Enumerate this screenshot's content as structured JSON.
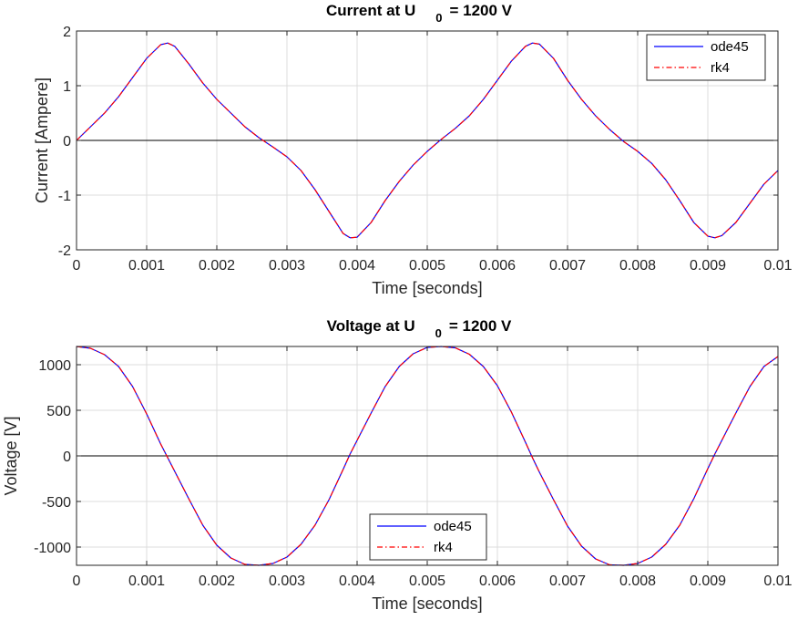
{
  "chart_data": [
    {
      "type": "line",
      "title": {
        "main": "Current at U",
        "sub": "0",
        "tail": "= 1200 V"
      },
      "xlabel": "Time [seconds]",
      "ylabel": "Current [Ampere]",
      "xlim": [
        0,
        0.01
      ],
      "ylim": [
        -2,
        2
      ],
      "xticks": [
        0,
        0.001,
        0.002,
        0.003,
        0.004,
        0.005,
        0.006,
        0.007,
        0.008,
        0.009,
        0.01
      ],
      "xtick_labels": [
        "0",
        "0.001",
        "0.002",
        "0.003",
        "0.004",
        "0.005",
        "0.006",
        "0.007",
        "0.008",
        "0.009",
        "0.01"
      ],
      "yticks": [
        -2,
        -1,
        0,
        1,
        2
      ],
      "ytick_labels": [
        "-2",
        "-1",
        "0",
        "1",
        "2"
      ],
      "grid": true,
      "zero_line": true,
      "legend": {
        "position": "top-right",
        "entries": [
          "ode45",
          "rk4"
        ]
      },
      "x": [
        0,
        0.0002,
        0.0004,
        0.0006,
        0.0008,
        0.001,
        0.0012,
        0.0013,
        0.0014,
        0.0016,
        0.0018,
        0.002,
        0.0022,
        0.0024,
        0.0026,
        0.0028,
        0.003,
        0.0032,
        0.0034,
        0.0036,
        0.0038,
        0.0039,
        0.004,
        0.0042,
        0.0044,
        0.0046,
        0.0048,
        0.005,
        0.0052,
        0.0054,
        0.0056,
        0.0058,
        0.006,
        0.0062,
        0.0064,
        0.0065,
        0.0066,
        0.0068,
        0.007,
        0.0072,
        0.0074,
        0.0076,
        0.0078,
        0.008,
        0.0082,
        0.0084,
        0.0086,
        0.0088,
        0.009,
        0.0091,
        0.0092,
        0.0094,
        0.0096,
        0.0098,
        0.01
      ],
      "series": [
        {
          "name": "ode45",
          "color": "#0000ff",
          "style": "solid",
          "values": [
            0,
            0.25,
            0.5,
            0.8,
            1.15,
            1.5,
            1.75,
            1.78,
            1.72,
            1.4,
            1.05,
            0.75,
            0.5,
            0.25,
            0.05,
            -0.12,
            -0.3,
            -0.55,
            -0.9,
            -1.3,
            -1.7,
            -1.78,
            -1.77,
            -1.5,
            -1.1,
            -0.75,
            -0.45,
            -0.2,
            0.02,
            0.22,
            0.45,
            0.75,
            1.1,
            1.45,
            1.72,
            1.78,
            1.76,
            1.5,
            1.1,
            0.75,
            0.45,
            0.2,
            -0.02,
            -0.2,
            -0.42,
            -0.72,
            -1.1,
            -1.5,
            -1.75,
            -1.78,
            -1.74,
            -1.5,
            -1.15,
            -0.8,
            -0.55
          ]
        },
        {
          "name": "rk4",
          "color": "#ff0000",
          "style": "dashdot",
          "values": [
            0,
            0.25,
            0.5,
            0.8,
            1.15,
            1.5,
            1.75,
            1.78,
            1.72,
            1.4,
            1.05,
            0.75,
            0.5,
            0.25,
            0.05,
            -0.12,
            -0.3,
            -0.55,
            -0.9,
            -1.3,
            -1.7,
            -1.78,
            -1.77,
            -1.5,
            -1.1,
            -0.75,
            -0.45,
            -0.2,
            0.02,
            0.22,
            0.45,
            0.75,
            1.1,
            1.45,
            1.72,
            1.78,
            1.76,
            1.5,
            1.1,
            0.75,
            0.45,
            0.2,
            -0.02,
            -0.2,
            -0.42,
            -0.72,
            -1.1,
            -1.5,
            -1.75,
            -1.78,
            -1.74,
            -1.5,
            -1.15,
            -0.8,
            -0.55
          ]
        }
      ]
    },
    {
      "type": "line",
      "title": {
        "main": "Voltage at U",
        "sub": "0",
        "tail": "= 1200 V"
      },
      "xlabel": "Time [seconds]",
      "ylabel": "Voltage [V]",
      "xlim": [
        0,
        0.01
      ],
      "ylim": [
        -1200,
        1200
      ],
      "xticks": [
        0,
        0.001,
        0.002,
        0.003,
        0.004,
        0.005,
        0.006,
        0.007,
        0.008,
        0.009,
        0.01
      ],
      "xtick_labels": [
        "0",
        "0.001",
        "0.002",
        "0.003",
        "0.004",
        "0.005",
        "0.006",
        "0.007",
        "0.008",
        "0.009",
        "0.01"
      ],
      "yticks": [
        -1000,
        -500,
        0,
        500,
        1000
      ],
      "ytick_labels": [
        "-1000",
        "-500",
        "0",
        "500",
        "1000"
      ],
      "grid": true,
      "zero_line": true,
      "legend": {
        "position": "bottom-center",
        "entries": [
          "ode45",
          "rk4"
        ]
      },
      "x": [
        0,
        0.0002,
        0.0004,
        0.0006,
        0.0008,
        0.001,
        0.0012,
        0.0013,
        0.0014,
        0.0016,
        0.0018,
        0.002,
        0.0022,
        0.0024,
        0.0026,
        0.0028,
        0.003,
        0.0032,
        0.0034,
        0.0036,
        0.0038,
        0.0039,
        0.004,
        0.0042,
        0.0044,
        0.0046,
        0.0048,
        0.005,
        0.0052,
        0.0054,
        0.0056,
        0.0058,
        0.006,
        0.0062,
        0.0064,
        0.0065,
        0.0066,
        0.0068,
        0.007,
        0.0072,
        0.0074,
        0.0076,
        0.0078,
        0.008,
        0.0082,
        0.0084,
        0.0086,
        0.0088,
        0.009,
        0.0091,
        0.0092,
        0.0094,
        0.0096,
        0.0098,
        0.01
      ],
      "series": [
        {
          "name": "ode45",
          "color": "#0000ff",
          "style": "solid",
          "values": [
            1200,
            1180,
            1110,
            980,
            760,
            460,
            130,
            -20,
            -170,
            -470,
            -760,
            -980,
            -1120,
            -1190,
            -1200,
            -1180,
            -1110,
            -970,
            -760,
            -480,
            -150,
            20,
            170,
            470,
            760,
            980,
            1120,
            1190,
            1200,
            1185,
            1115,
            980,
            770,
            480,
            150,
            -20,
            -180,
            -480,
            -770,
            -990,
            -1130,
            -1195,
            -1200,
            -1180,
            -1110,
            -970,
            -760,
            -470,
            -140,
            20,
            170,
            470,
            760,
            980,
            1090
          ]
        },
        {
          "name": "rk4",
          "color": "#ff0000",
          "style": "dashdot",
          "values": [
            1200,
            1180,
            1110,
            980,
            760,
            460,
            130,
            -20,
            -170,
            -470,
            -760,
            -980,
            -1120,
            -1190,
            -1200,
            -1180,
            -1110,
            -970,
            -760,
            -480,
            -150,
            20,
            170,
            470,
            760,
            980,
            1120,
            1190,
            1200,
            1185,
            1115,
            980,
            770,
            480,
            150,
            -20,
            -180,
            -480,
            -770,
            -990,
            -1130,
            -1195,
            -1200,
            -1180,
            -1110,
            -970,
            -760,
            -470,
            -140,
            20,
            170,
            470,
            760,
            980,
            1090
          ]
        }
      ]
    }
  ]
}
